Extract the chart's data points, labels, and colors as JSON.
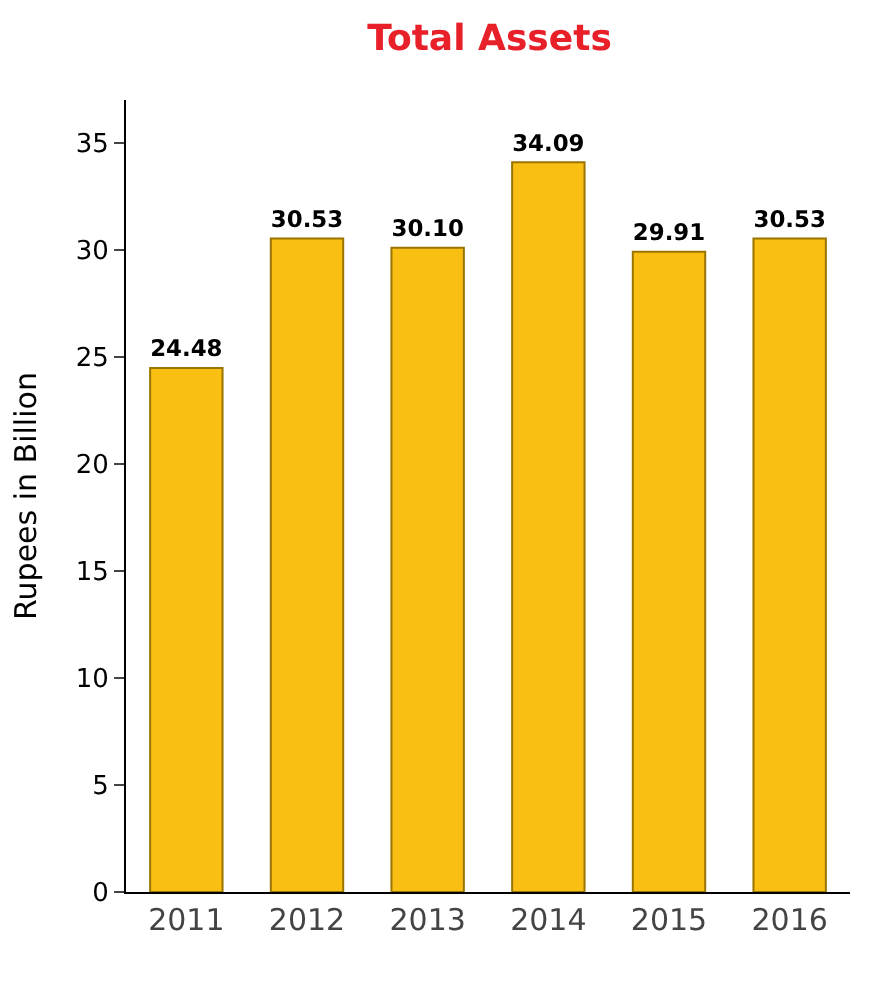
{
  "chart_data": {
    "type": "bar",
    "title": "Total Assets",
    "ylabel": "Rupees in Billion",
    "categories": [
      "2011",
      "2012",
      "2013",
      "2014",
      "2015",
      "2016"
    ],
    "values": [
      24.48,
      30.53,
      30.1,
      34.09,
      29.91,
      30.53
    ],
    "value_labels": [
      "24.48",
      "30.53",
      "30.10",
      "34.09",
      "29.91",
      "30.53"
    ],
    "color": "#f9c013",
    "ylim": [
      0,
      37
    ],
    "yticks": [
      0,
      5,
      10,
      15,
      20,
      25,
      30,
      35
    ]
  }
}
